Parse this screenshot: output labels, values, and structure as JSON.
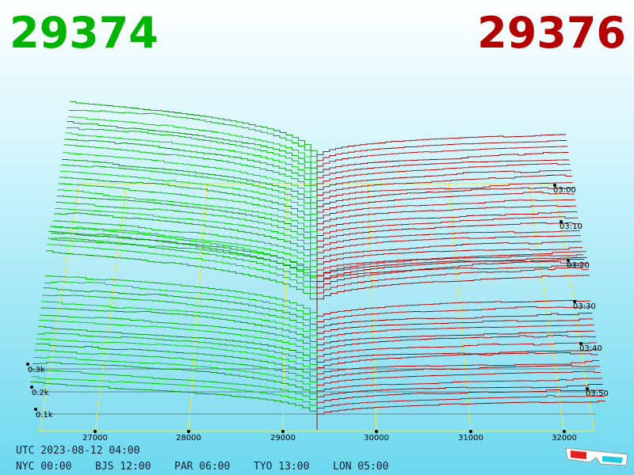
{
  "header": {
    "bid": "29374",
    "ask": "29376"
  },
  "axes": {
    "price_labels": [
      "27000",
      "28000",
      "29000",
      "30000",
      "31000",
      "32000"
    ],
    "time_labels": [
      "03:00",
      "03:10",
      "03:20",
      "03:30",
      "03:40",
      "03:50"
    ],
    "volume_labels": [
      "0.3k",
      "0.2k",
      "0.1k"
    ]
  },
  "footer": {
    "utc": "UTC 2023-08-12 04:00",
    "zones": [
      "NYC 00:00",
      "BJS 12:00",
      "PAR 06:00",
      "TYO 13:00",
      "LON 05:00"
    ]
  }
}
